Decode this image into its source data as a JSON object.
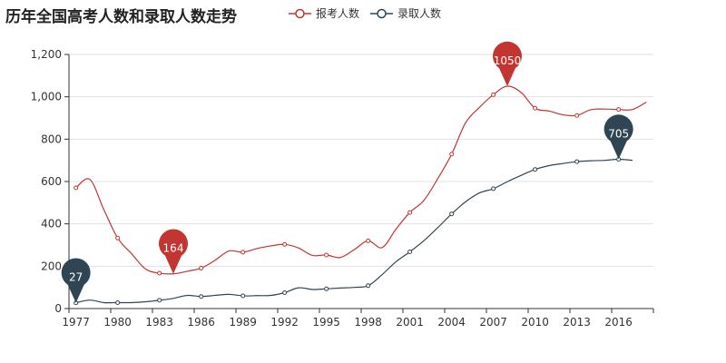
{
  "chart_data": {
    "type": "line",
    "title": "历年全国高考人数和录取人数走势",
    "xlabel": "",
    "ylabel": "",
    "ylim": [
      0,
      1200
    ],
    "yticks": [
      "0",
      "200",
      "400",
      "600",
      "800",
      "1,000",
      "1,200"
    ],
    "grid": "horizontal",
    "legend_position": "top",
    "x": [
      "1977",
      "1978",
      "1979",
      "1980",
      "1981",
      "1982",
      "1983",
      "1984",
      "1985",
      "1986",
      "1987",
      "1988",
      "1989",
      "1990",
      "1991",
      "1992",
      "1993",
      "1994",
      "1995",
      "1996",
      "1997",
      "1998",
      "1999",
      "2000",
      "2001",
      "2002",
      "2003",
      "2004",
      "2005",
      "2006",
      "2007",
      "2008",
      "2009",
      "2010",
      "2011",
      "2012",
      "2013",
      "2014",
      "2015",
      "2016",
      "2017",
      "2018"
    ],
    "series": [
      {
        "name": "报考人数",
        "color": "#c23531",
        "values": [
          570,
          610,
          468,
          333,
          259,
          187,
          167,
          164,
          176,
          191,
          228,
          272,
          266,
          283,
          296,
          303,
          286,
          251,
          253,
          241,
          278,
          320,
          288,
          375,
          454,
          510,
          613,
          729,
          877,
          950,
          1010,
          1050,
          1020,
          946,
          933,
          915,
          912,
          939,
          942,
          940,
          940,
          975
        ],
        "markers": [
          {
            "label": "1050",
            "x": "2008",
            "value": 1050
          },
          {
            "label": "164",
            "x": "1984",
            "value": 164
          }
        ]
      },
      {
        "name": "录取人数",
        "color": "#2f4554",
        "values": [
          27,
          40,
          28,
          28,
          28,
          32,
          39,
          48,
          62,
          57,
          62,
          67,
          60,
          61,
          62,
          75,
          98,
          90,
          93,
          97,
          100,
          108,
          160,
          221,
          268,
          320,
          382,
          447,
          504,
          546,
          566,
          599,
          629,
          657,
          675,
          685,
          694,
          698,
          700,
          705,
          700,
          null
        ],
        "markers": [
          {
            "label": "705",
            "x": "2016",
            "value": 705
          },
          {
            "label": "27",
            "x": "1977",
            "value": 27
          }
        ]
      }
    ]
  }
}
